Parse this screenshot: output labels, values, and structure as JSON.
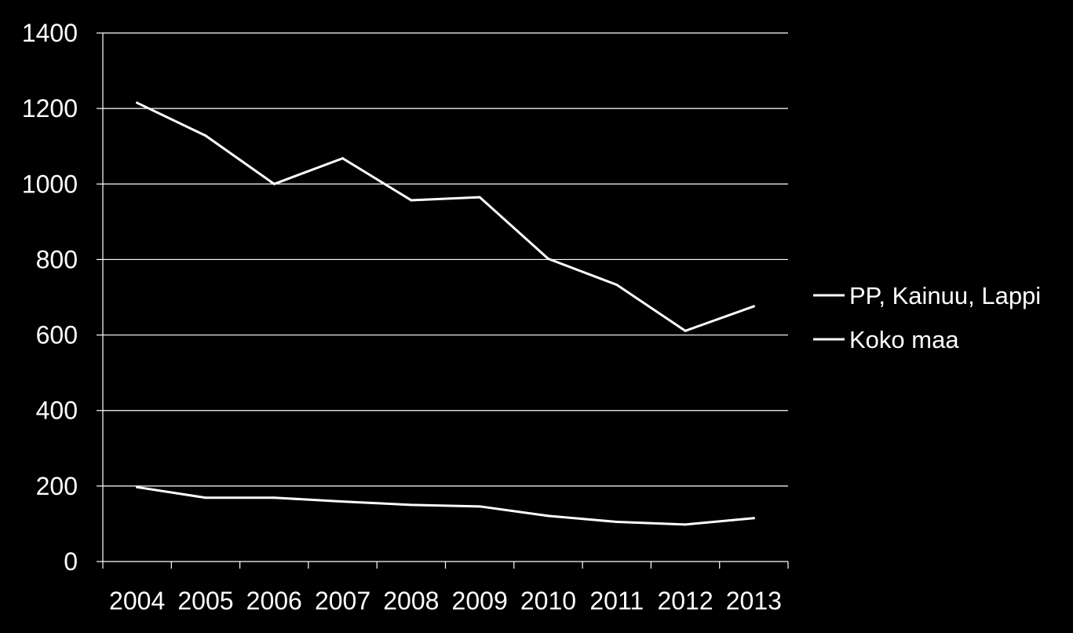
{
  "colors": {
    "background": "#000000",
    "foreground": "#ffffff",
    "grid": "#ffffff"
  },
  "legend": {
    "placement": "right",
    "items": [
      {
        "label": "PP, Kainuu, Lappi"
      },
      {
        "label": "Koko maa"
      }
    ]
  },
  "chart_data": {
    "type": "line",
    "title": "",
    "xlabel": "",
    "ylabel": "",
    "grid": true,
    "ylim": [
      0,
      1400
    ],
    "y_ticks": [
      "0",
      "200",
      "400",
      "600",
      "800",
      "1000",
      "1200",
      "1400"
    ],
    "categories": [
      "2004",
      "2005",
      "2006",
      "2007",
      "2008",
      "2009",
      "2010",
      "2011",
      "2012",
      "2013"
    ],
    "series": [
      {
        "name": "PP, Kainuu, Lappi",
        "color": "#ffffff",
        "values": [
          1215,
          1128,
          1000,
          1068,
          957,
          965,
          802,
          733,
          611,
          676
        ]
      },
      {
        "name": "Koko maa",
        "color": "#ffffff",
        "values": [
          197,
          169,
          169,
          159,
          150,
          146,
          121,
          105,
          98,
          115
        ]
      }
    ]
  }
}
